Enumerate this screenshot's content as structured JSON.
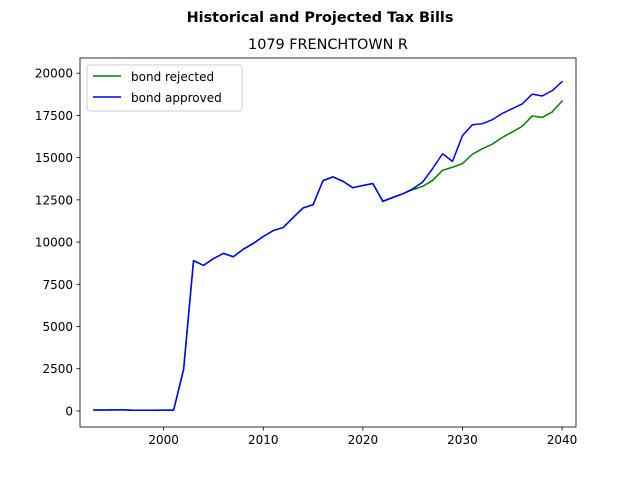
{
  "suptitle": "Historical and Projected Tax Bills",
  "chart_data": {
    "type": "line",
    "title": "1079 FRENCHTOWN R",
    "xlabel": "",
    "ylabel": "",
    "xlim": [
      1991.6,
      2041.4
    ],
    "ylim": [
      -950,
      20900
    ],
    "x_ticks": [
      2000,
      2010,
      2020,
      2030,
      2040
    ],
    "y_ticks": [
      0,
      2500,
      5000,
      7500,
      10000,
      12500,
      15000,
      17500,
      20000
    ],
    "grid": false,
    "legend_position": "upper-left",
    "series": [
      {
        "name": "bond rejected",
        "color": "#008000",
        "points": [
          [
            1993,
            60
          ],
          [
            1994,
            60
          ],
          [
            1995,
            65
          ],
          [
            1996,
            65
          ],
          [
            1997,
            40
          ],
          [
            1998,
            40
          ],
          [
            1999,
            45
          ],
          [
            2000,
            50
          ],
          [
            2001,
            50
          ],
          [
            2002,
            2450
          ],
          [
            2003,
            8900
          ],
          [
            2004,
            8620
          ],
          [
            2005,
            9020
          ],
          [
            2006,
            9330
          ],
          [
            2007,
            9130
          ],
          [
            2008,
            9580
          ],
          [
            2009,
            9920
          ],
          [
            2010,
            10330
          ],
          [
            2011,
            10680
          ],
          [
            2012,
            10860
          ],
          [
            2013,
            11450
          ],
          [
            2014,
            12020
          ],
          [
            2015,
            12210
          ],
          [
            2016,
            13640
          ],
          [
            2017,
            13860
          ],
          [
            2018,
            13600
          ],
          [
            2019,
            13220
          ],
          [
            2020,
            13350
          ],
          [
            2021,
            13470
          ],
          [
            2022,
            12410
          ],
          [
            2023,
            12640
          ],
          [
            2024,
            12860
          ],
          [
            2025,
            13100
          ],
          [
            2026,
            13300
          ],
          [
            2027,
            13650
          ],
          [
            2028,
            14250
          ],
          [
            2029,
            14430
          ],
          [
            2030,
            14650
          ],
          [
            2031,
            15200
          ],
          [
            2032,
            15530
          ],
          [
            2033,
            15800
          ],
          [
            2034,
            16200
          ],
          [
            2035,
            16520
          ],
          [
            2036,
            16850
          ],
          [
            2037,
            17470
          ],
          [
            2038,
            17380
          ],
          [
            2039,
            17700
          ],
          [
            2040,
            18350
          ]
        ]
      },
      {
        "name": "bond approved",
        "color": "#0000ff",
        "points": [
          [
            1993,
            60
          ],
          [
            1994,
            60
          ],
          [
            1995,
            65
          ],
          [
            1996,
            65
          ],
          [
            1997,
            40
          ],
          [
            1998,
            40
          ],
          [
            1999,
            45
          ],
          [
            2000,
            50
          ],
          [
            2001,
            50
          ],
          [
            2002,
            2450
          ],
          [
            2003,
            8900
          ],
          [
            2004,
            8620
          ],
          [
            2005,
            9020
          ],
          [
            2006,
            9330
          ],
          [
            2007,
            9130
          ],
          [
            2008,
            9580
          ],
          [
            2009,
            9920
          ],
          [
            2010,
            10330
          ],
          [
            2011,
            10680
          ],
          [
            2012,
            10860
          ],
          [
            2013,
            11450
          ],
          [
            2014,
            12020
          ],
          [
            2015,
            12210
          ],
          [
            2016,
            13640
          ],
          [
            2017,
            13860
          ],
          [
            2018,
            13600
          ],
          [
            2019,
            13220
          ],
          [
            2020,
            13350
          ],
          [
            2021,
            13470
          ],
          [
            2022,
            12410
          ],
          [
            2023,
            12640
          ],
          [
            2024,
            12860
          ],
          [
            2025,
            13150
          ],
          [
            2026,
            13550
          ],
          [
            2027,
            14350
          ],
          [
            2028,
            15230
          ],
          [
            2029,
            14780
          ],
          [
            2030,
            16300
          ],
          [
            2031,
            16950
          ],
          [
            2032,
            17010
          ],
          [
            2033,
            17250
          ],
          [
            2034,
            17620
          ],
          [
            2035,
            17900
          ],
          [
            2036,
            18180
          ],
          [
            2037,
            18760
          ],
          [
            2038,
            18650
          ],
          [
            2039,
            18960
          ],
          [
            2040,
            19500
          ]
        ]
      }
    ]
  }
}
